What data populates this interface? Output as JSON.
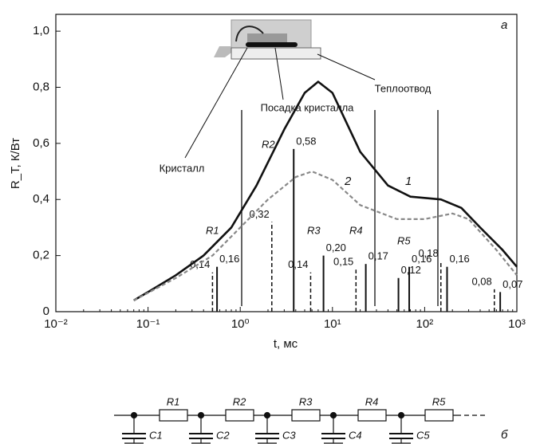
{
  "chart_data": {
    "type": "line",
    "x_label": "t, мс",
    "y_label": "R_T, К/Вт",
    "xscale": "log",
    "xlim": [
      0.01,
      1000
    ],
    "ylim": [
      0,
      1.06
    ],
    "xticks": [
      {
        "value": 0.01,
        "label": "10⁻²"
      },
      {
        "value": 0.1,
        "label": "10⁻¹"
      },
      {
        "value": 1,
        "label": "10⁰"
      },
      {
        "value": 10,
        "label": "10¹"
      },
      {
        "value": 100,
        "label": "10²"
      },
      {
        "value": 1000,
        "label": "10³"
      }
    ],
    "yticks": [
      0,
      {
        "value": 0.2,
        "label": "0,2"
      },
      {
        "value": 0.4,
        "label": "0,4"
      },
      {
        "value": 0.6,
        "label": "0,6"
      },
      {
        "value": 0.8,
        "label": "0,8"
      },
      {
        "value": 1.0,
        "label": "1,0"
      }
    ],
    "series": [
      {
        "name": "1",
        "color": "#111111",
        "style": "solid",
        "x": [
          0.07,
          0.1,
          0.2,
          0.4,
          0.8,
          1.5,
          3,
          5,
          7,
          10,
          20,
          40,
          70,
          150,
          250,
          400,
          700,
          1000
        ],
        "values": [
          0.04,
          0.07,
          0.13,
          0.2,
          0.3,
          0.45,
          0.65,
          0.78,
          0.82,
          0.78,
          0.57,
          0.45,
          0.41,
          0.4,
          0.37,
          0.3,
          0.22,
          0.16
        ]
      },
      {
        "name": "2",
        "color": "#888888",
        "style": "dashed",
        "x": [
          0.07,
          0.2,
          0.5,
          1,
          2,
          4,
          6,
          10,
          20,
          50,
          100,
          200,
          300,
          600,
          1000
        ],
        "values": [
          0.04,
          0.12,
          0.2,
          0.3,
          0.4,
          0.48,
          0.5,
          0.47,
          0.38,
          0.33,
          0.33,
          0.35,
          0.33,
          0.22,
          0.13
        ]
      }
    ],
    "bars": [
      {
        "style": "solid",
        "color": "#111111",
        "x": [
          0.56,
          3.8,
          8,
          23,
          52,
          68,
          175,
          660
        ],
        "values": [
          0.16,
          0.58,
          0.2,
          0.17,
          0.12,
          0.16,
          0.16,
          0.07
        ],
        "value_labels": [
          "0,16",
          "0,58",
          "0,20",
          "0,17",
          "0,12",
          "0,16",
          "0,16",
          "0,07"
        ]
      },
      {
        "style": "dashed",
        "color": "#111111",
        "x": [
          0.5,
          2.2,
          5.8,
          18,
          150,
          570
        ],
        "values": [
          0.14,
          0.32,
          0.14,
          0.15,
          0.18,
          0.08
        ],
        "value_labels": [
          "0,14",
          "0,32",
          "0,14",
          "0,15",
          "0,18",
          "0,08"
        ]
      }
    ],
    "annotations": [
      "а",
      "R1",
      "R2",
      "R3",
      "R4",
      "R5",
      "Кристалл",
      "Посадка кристалла",
      "Теплоотвод"
    ]
  },
  "circuit": {
    "resistors": [
      "R1",
      "R2",
      "R3",
      "R4",
      "R5"
    ],
    "capacitors": [
      "C1",
      "C2",
      "C3",
      "C4",
      "C5"
    ],
    "label": "б"
  }
}
